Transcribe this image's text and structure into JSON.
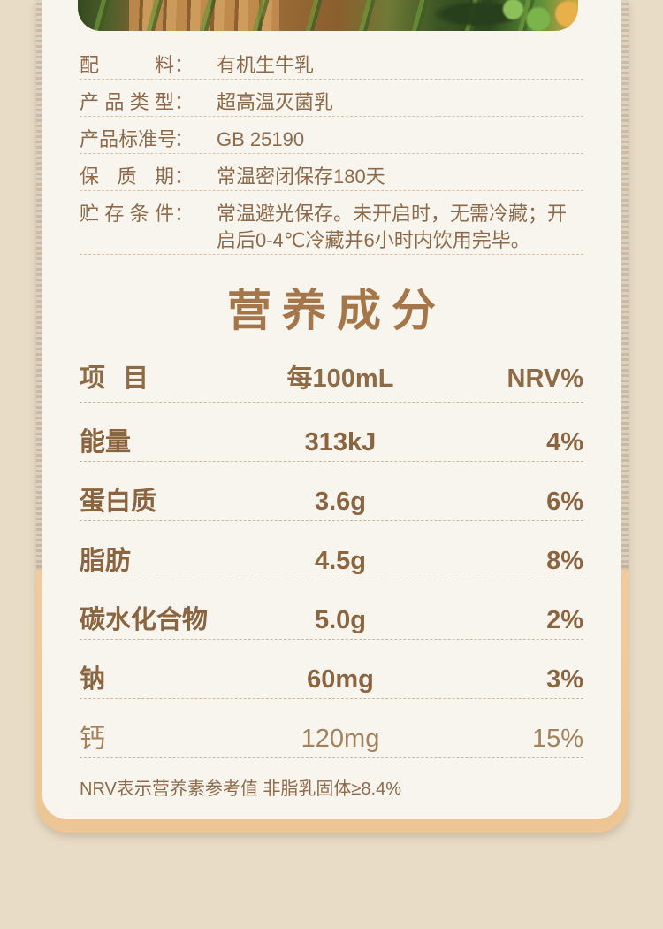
{
  "theme": {
    "page_bg": "#e8dcc7",
    "card_bg": "#f8f5ef",
    "frame_top": "#d2c3b0",
    "frame_bottom": "#f0ca9c",
    "text_brown": "#8e6a49",
    "table_brown": "#8b6440",
    "title_brown": "#a5764a",
    "divider": "#cbb89e"
  },
  "hero_image": {
    "name": "orchard-produce-photo"
  },
  "product_info": {
    "rows": [
      {
        "label": "配料",
        "colon": "：",
        "value": "有机生牛乳"
      },
      {
        "label": "产品类型",
        "colon": "：",
        "value": "超高温灭菌乳"
      },
      {
        "label": "产品标准号",
        "colon": "：",
        "value": "GB 25190"
      },
      {
        "label": "保质期",
        "colon": "：",
        "value": "常温密闭保存180天"
      },
      {
        "label": "贮存条件",
        "colon": "：",
        "value": "常温避光保存。未开启时，无需冷藏；开启后0-4℃冷藏并6小时内饮用完毕。"
      }
    ]
  },
  "nutrition": {
    "title": "营养成分",
    "header": {
      "item": "项目",
      "per": "每100mL",
      "nrv": "NRV%"
    },
    "rows": [
      {
        "name": "能量",
        "value": "313kJ",
        "nrv": "4%"
      },
      {
        "name": "蛋白质",
        "value": "3.6g",
        "nrv": "6%"
      },
      {
        "name": "脂肪",
        "value": "4.5g",
        "nrv": "8%"
      },
      {
        "name": "碳水化合物",
        "value": "5.0g",
        "nrv": "2%"
      },
      {
        "name": "钠",
        "value": "60mg",
        "nrv": "3%"
      },
      {
        "name": "钙",
        "value": "120mg",
        "nrv": "15%"
      }
    ],
    "footnote": "NRV表示营养素参考值 非脂乳固体≥8.4%"
  }
}
